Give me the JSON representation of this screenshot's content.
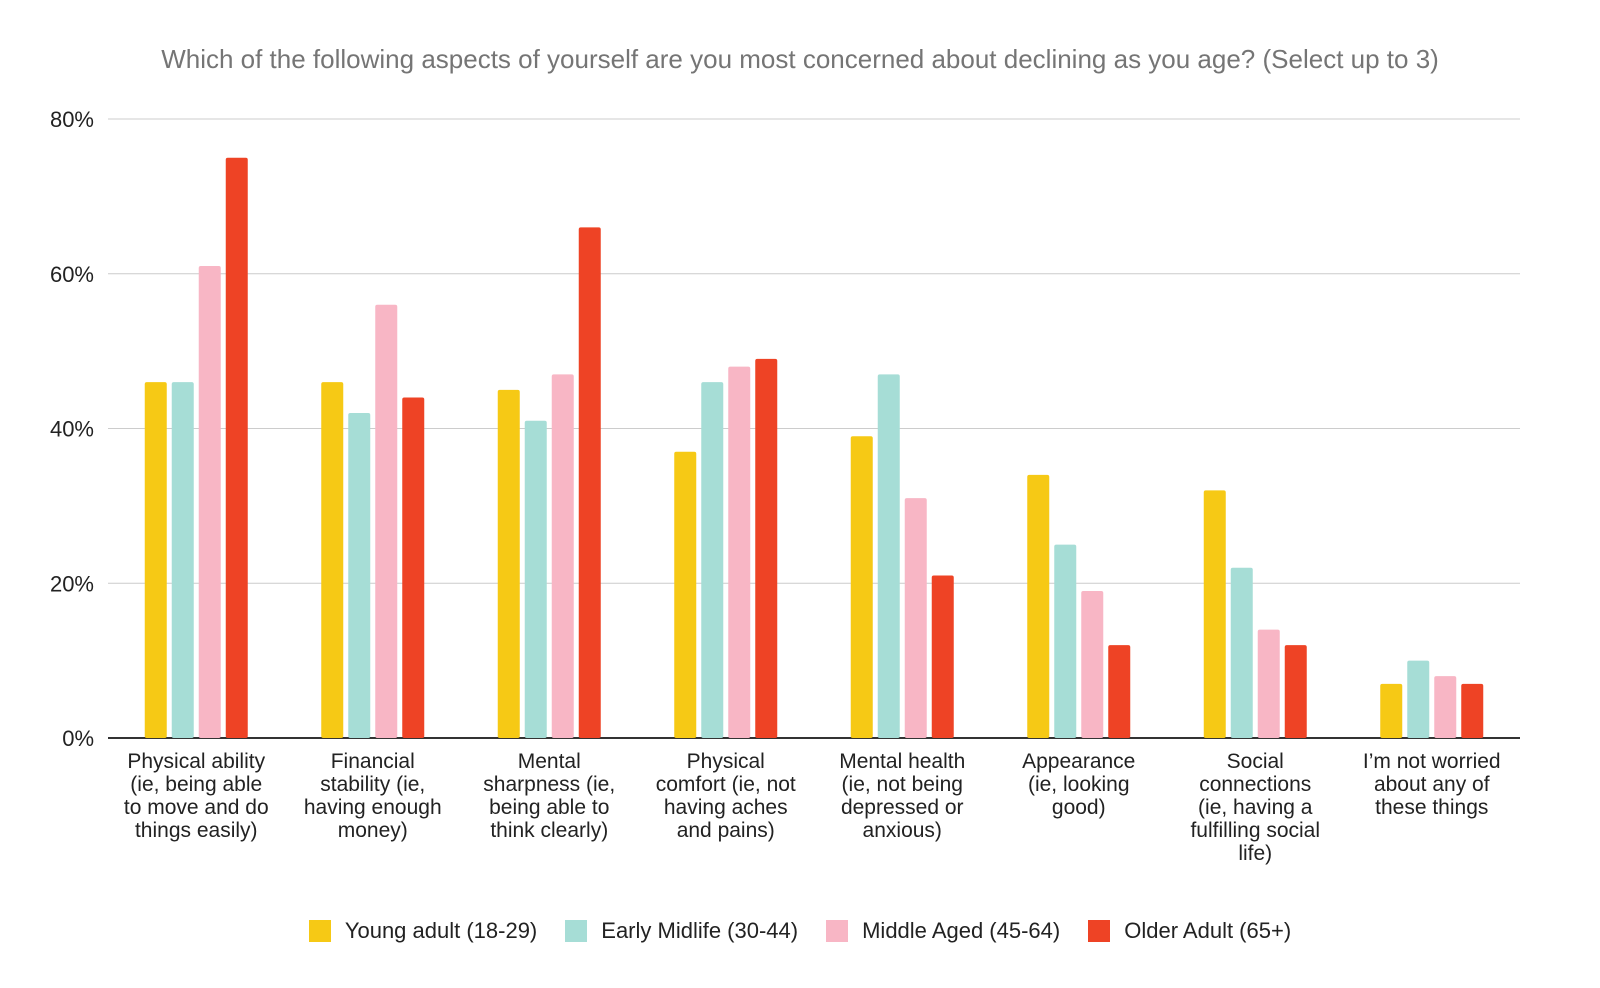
{
  "chart_data": {
    "type": "bar",
    "title": "Which of the following aspects of yourself are you most concerned about declining as you age? (Select up to 3)",
    "categories": [
      [
        "Physical ability",
        "(ie, being able",
        "to move and do",
        "things easily)"
      ],
      [
        "Financial",
        "stability (ie,",
        "having enough",
        "money)"
      ],
      [
        "Mental",
        "sharpness (ie,",
        "being able to",
        "think clearly)"
      ],
      [
        "Physical",
        "comfort (ie, not",
        "having aches",
        "and pains)"
      ],
      [
        "Mental health",
        "(ie, not being",
        "depressed or",
        "anxious)"
      ],
      [
        "Appearance",
        "(ie, looking",
        "good)"
      ],
      [
        "Social",
        "connections",
        "(ie, having a",
        "fulfilling social",
        "life)"
      ],
      [
        "I’m not worried",
        "about any of",
        "these things"
      ]
    ],
    "series": [
      {
        "name": "Young adult (18-29)",
        "color": "#f6c915",
        "values": [
          46,
          46,
          45,
          37,
          39,
          34,
          32,
          7
        ]
      },
      {
        "name": "Early Midlife (30-44)",
        "color": "#a6ddd6",
        "values": [
          46,
          42,
          41,
          46,
          47,
          25,
          22,
          10
        ]
      },
      {
        "name": "Middle Aged (45-64)",
        "color": "#f8b6c5",
        "values": [
          61,
          56,
          47,
          48,
          31,
          19,
          14,
          8
        ]
      },
      {
        "name": "Older Adult (65+)",
        "color": "#ee4325",
        "values": [
          75,
          44,
          66,
          49,
          21,
          12,
          12,
          7
        ]
      }
    ],
    "yticks": [
      "0%",
      "20%",
      "40%",
      "60%",
      "80%"
    ],
    "ylim": [
      0,
      80
    ],
    "grid": true,
    "legend_position": "bottom"
  }
}
